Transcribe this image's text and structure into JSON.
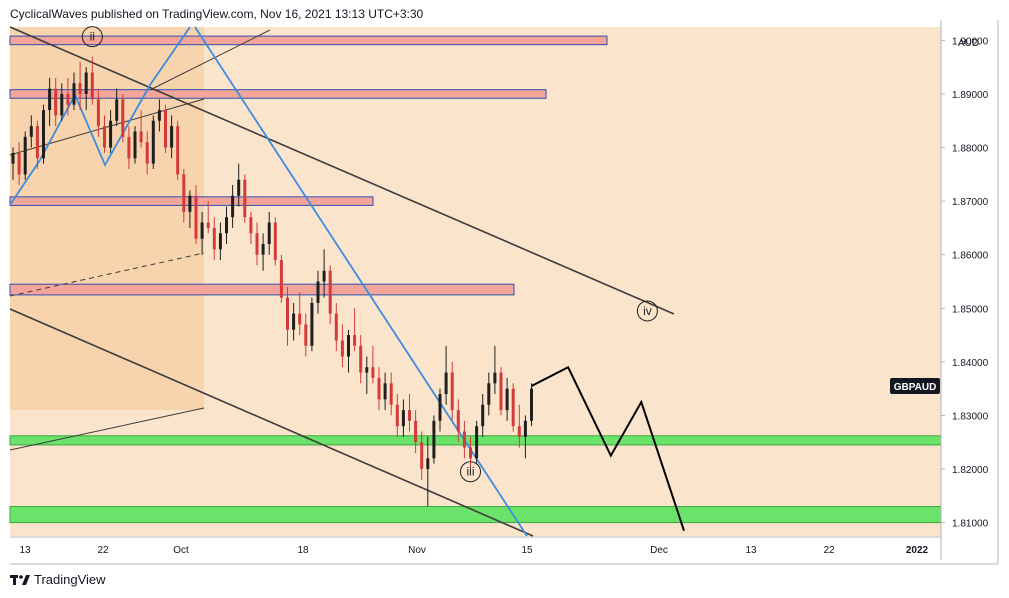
{
  "header": {
    "publisher": "CyclicalWaves published on TradingView.com, Nov 16, 2021 13:13 UTC+3:30"
  },
  "footer": {
    "brand": "TradingView",
    "logo_icon": "tradingview-logo-icon"
  },
  "colors": {
    "background": "#fbe4cc",
    "shaded_region": "#f7d3ae",
    "resistance_zone": "#f4a59a",
    "support_zone": "#6be36b",
    "up_candle": "#1f1f1f",
    "down_candle": "#d43a3a",
    "blue_line": "#3b8de0",
    "channel_line": "#3c3c3c",
    "projection_line": "#000000",
    "price_badge": "#131722"
  },
  "chart_data": {
    "type": "candlestick",
    "symbol": "GBPAUD",
    "currency": "AUD",
    "x_ticks": [
      "13",
      "22",
      "Oct",
      "18",
      "Nov",
      "15",
      "Dec",
      "13",
      "22",
      "2022"
    ],
    "y_ticks": [
      "1.90000",
      "1.89000",
      "1.88000",
      "1.87000",
      "1.86000",
      "1.85000",
      "1.84000",
      "1.83000",
      "1.82000",
      "1.81000"
    ],
    "ylim": [
      1.8075,
      1.9025
    ],
    "current_price_label": "GBPAUD",
    "current_price": 1.8355,
    "resistance_zones": [
      {
        "low": 1.8992,
        "high": 1.9008
      },
      {
        "low": 1.8892,
        "high": 1.8908
      },
      {
        "low": 1.8692,
        "high": 1.8708
      },
      {
        "low": 1.8525,
        "high": 1.8545
      }
    ],
    "support_zones": [
      {
        "low": 1.8245,
        "high": 1.8262
      },
      {
        "low": 1.81,
        "high": 1.813
      }
    ],
    "wave_labels": [
      {
        "label": "ii",
        "x_index": 13,
        "price": 1.9007
      },
      {
        "label": "iii",
        "x_index": 75,
        "price": 1.8195
      },
      {
        "label": "iv",
        "x_index": 104,
        "price": 1.8495
      }
    ],
    "candles": [
      [
        1.877,
        1.88,
        1.874,
        1.879
      ],
      [
        1.879,
        1.881,
        1.873,
        1.875
      ],
      [
        1.875,
        1.883,
        1.874,
        1.882
      ],
      [
        1.882,
        1.886,
        1.88,
        1.884
      ],
      [
        1.884,
        1.885,
        1.876,
        1.878
      ],
      [
        1.878,
        1.888,
        1.877,
        1.887
      ],
      [
        1.887,
        1.893,
        1.884,
        1.891
      ],
      [
        1.891,
        1.893,
        1.884,
        1.886
      ],
      [
        1.886,
        1.892,
        1.885,
        1.89
      ],
      [
        1.89,
        1.893,
        1.886,
        1.888
      ],
      [
        1.888,
        1.894,
        1.887,
        1.892
      ],
      [
        1.892,
        1.896,
        1.887,
        1.89
      ],
      [
        1.89,
        1.895,
        1.887,
        1.894
      ],
      [
        1.894,
        1.897,
        1.888,
        1.889
      ],
      [
        1.889,
        1.891,
        1.882,
        1.884
      ],
      [
        1.884,
        1.886,
        1.879,
        1.88
      ],
      [
        1.88,
        1.887,
        1.879,
        1.885
      ],
      [
        1.885,
        1.891,
        1.884,
        1.889
      ],
      [
        1.889,
        1.89,
        1.881,
        1.882
      ],
      [
        1.882,
        1.884,
        1.876,
        1.878
      ],
      [
        1.878,
        1.884,
        1.877,
        1.883
      ],
      [
        1.883,
        1.887,
        1.88,
        1.881
      ],
      [
        1.881,
        1.883,
        1.875,
        1.877
      ],
      [
        1.877,
        1.886,
        1.876,
        1.885
      ],
      [
        1.885,
        1.889,
        1.883,
        1.887
      ],
      [
        1.887,
        1.888,
        1.879,
        1.88
      ],
      [
        1.88,
        1.886,
        1.878,
        1.884
      ],
      [
        1.884,
        1.885,
        1.874,
        1.875
      ],
      [
        1.875,
        1.876,
        1.866,
        1.868
      ],
      [
        1.868,
        1.872,
        1.865,
        1.871
      ],
      [
        1.871,
        1.873,
        1.862,
        1.863
      ],
      [
        1.863,
        1.868,
        1.86,
        1.866
      ],
      [
        1.866,
        1.87,
        1.864,
        1.865
      ],
      [
        1.865,
        1.867,
        1.859,
        1.861
      ],
      [
        1.861,
        1.866,
        1.859,
        1.864
      ],
      [
        1.864,
        1.869,
        1.862,
        1.867
      ],
      [
        1.867,
        1.873,
        1.865,
        1.871
      ],
      [
        1.871,
        1.877,
        1.869,
        1.874
      ],
      [
        1.874,
        1.875,
        1.866,
        1.867
      ],
      [
        1.867,
        1.868,
        1.862,
        1.864
      ],
      [
        1.864,
        1.866,
        1.858,
        1.86
      ],
      [
        1.86,
        1.864,
        1.857,
        1.862
      ],
      [
        1.862,
        1.868,
        1.86,
        1.866
      ],
      [
        1.866,
        1.867,
        1.858,
        1.859
      ],
      [
        1.859,
        1.86,
        1.851,
        1.852
      ],
      [
        1.852,
        1.854,
        1.843,
        1.846
      ],
      [
        1.846,
        1.851,
        1.844,
        1.849
      ],
      [
        1.849,
        1.853,
        1.845,
        1.847
      ],
      [
        1.847,
        1.849,
        1.841,
        1.843
      ],
      [
        1.843,
        1.852,
        1.842,
        1.851
      ],
      [
        1.851,
        1.857,
        1.849,
        1.855
      ],
      [
        1.855,
        1.861,
        1.852,
        1.857
      ],
      [
        1.857,
        1.858,
        1.847,
        1.849
      ],
      [
        1.849,
        1.851,
        1.842,
        1.844
      ],
      [
        1.844,
        1.847,
        1.839,
        1.841
      ],
      [
        1.841,
        1.846,
        1.838,
        1.845
      ],
      [
        1.845,
        1.85,
        1.842,
        1.843
      ],
      [
        1.843,
        1.845,
        1.836,
        1.838
      ],
      [
        1.838,
        1.841,
        1.834,
        1.839
      ],
      [
        1.839,
        1.843,
        1.836,
        1.837
      ],
      [
        1.837,
        1.839,
        1.831,
        1.833
      ],
      [
        1.833,
        1.838,
        1.831,
        1.836
      ],
      [
        1.836,
        1.838,
        1.83,
        1.832
      ],
      [
        1.832,
        1.834,
        1.826,
        1.828
      ],
      [
        1.828,
        1.833,
        1.826,
        1.831
      ],
      [
        1.831,
        1.834,
        1.827,
        1.829
      ],
      [
        1.829,
        1.831,
        1.823,
        1.825
      ],
      [
        1.825,
        1.827,
        1.818,
        1.82
      ],
      [
        1.82,
        1.826,
        1.813,
        1.822
      ],
      [
        1.822,
        1.83,
        1.821,
        1.829
      ],
      [
        1.829,
        1.835,
        1.827,
        1.834
      ],
      [
        1.834,
        1.843,
        1.832,
        1.838
      ],
      [
        1.838,
        1.84,
        1.829,
        1.831
      ],
      [
        1.831,
        1.833,
        1.825,
        1.827
      ],
      [
        1.827,
        1.829,
        1.822,
        1.824
      ],
      [
        1.824,
        1.826,
        1.82,
        1.822
      ],
      [
        1.822,
        1.829,
        1.821,
        1.828
      ],
      [
        1.828,
        1.834,
        1.826,
        1.832
      ],
      [
        1.832,
        1.838,
        1.83,
        1.836
      ],
      [
        1.836,
        1.843,
        1.834,
        1.838
      ],
      [
        1.838,
        1.839,
        1.83,
        1.831
      ],
      [
        1.831,
        1.837,
        1.829,
        1.835
      ],
      [
        1.835,
        1.836,
        1.827,
        1.828
      ],
      [
        1.828,
        1.832,
        1.824,
        1.826
      ],
      [
        1.826,
        1.83,
        1.822,
        1.829
      ],
      [
        1.829,
        1.836,
        1.828,
        1.835
      ]
    ],
    "projection": [
      {
        "x_index": 85,
        "price": 1.8355
      },
      {
        "x_index": 91,
        "price": 1.839
      },
      {
        "x_index": 98,
        "price": 1.8225
      },
      {
        "x_index": 103,
        "price": 1.8325
      },
      {
        "x_index": 110,
        "price": 1.8085
      }
    ]
  }
}
